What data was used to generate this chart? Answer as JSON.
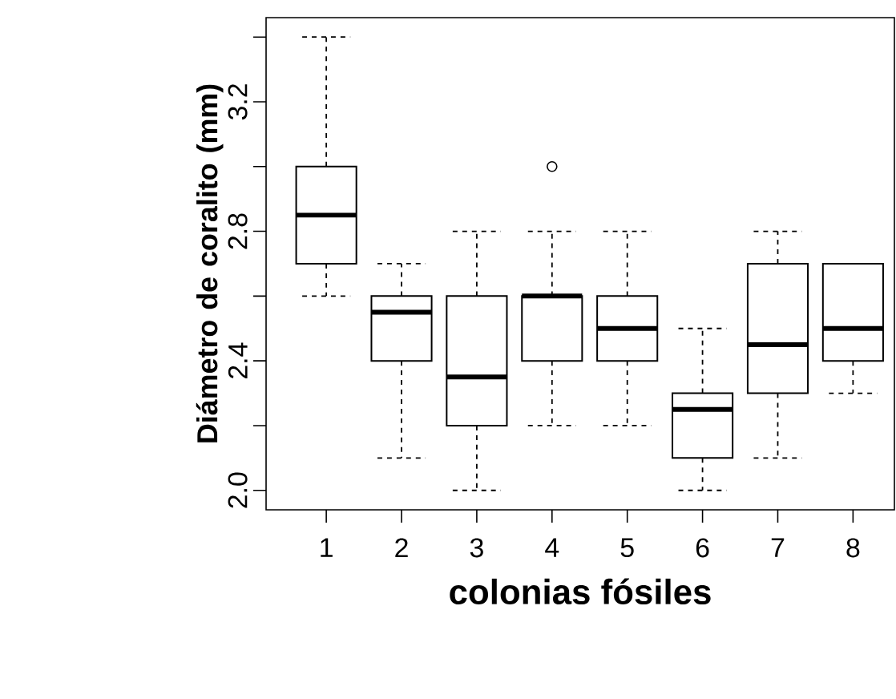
{
  "chart_data": {
    "type": "box",
    "xlabel": "colonias fósiles",
    "ylabel": "Diámetro de coralito (mm)",
    "categories": [
      "1",
      "2",
      "3",
      "4",
      "5",
      "6",
      "7",
      "8"
    ],
    "boxes": [
      {
        "low": 2.6,
        "q1": 2.7,
        "median": 2.85,
        "q3": 3.0,
        "high": 3.4
      },
      {
        "low": 2.1,
        "q1": 2.4,
        "median": 2.55,
        "q3": 2.6,
        "high": 2.7
      },
      {
        "low": 2.0,
        "q1": 2.2,
        "median": 2.35,
        "q3": 2.6,
        "high": 2.8
      },
      {
        "low": 2.2,
        "q1": 2.4,
        "median": 2.6,
        "q3": 2.6,
        "high": 2.8,
        "outliers": [
          3.0
        ]
      },
      {
        "low": 2.2,
        "q1": 2.4,
        "median": 2.5,
        "q3": 2.6,
        "high": 2.8
      },
      {
        "low": 2.0,
        "q1": 2.1,
        "median": 2.25,
        "q3": 2.3,
        "high": 2.5
      },
      {
        "low": 2.1,
        "q1": 2.3,
        "median": 2.45,
        "q3": 2.7,
        "high": 2.8
      },
      {
        "low": 2.3,
        "q1": 2.4,
        "median": 2.5,
        "q3": 2.7,
        "high": 2.7
      }
    ],
    "ylim": [
      1.94,
      3.46
    ],
    "yticks": [
      {
        "value": 2.0,
        "label": "2.0"
      },
      {
        "value": 2.2,
        "label": null
      },
      2.4,
      {
        "value": 2.6,
        "label": null
      },
      2.8,
      {
        "value": 3.0,
        "label": null
      },
      3.2,
      {
        "value": 3.4,
        "label": null
      }
    ]
  }
}
